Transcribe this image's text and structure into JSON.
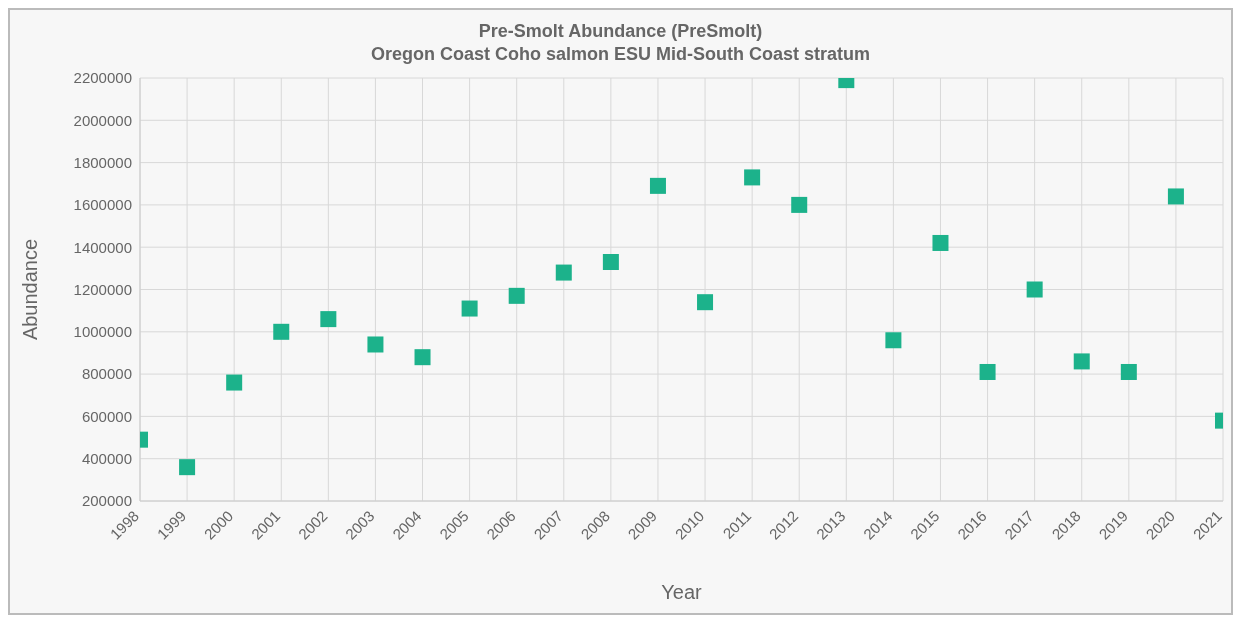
{
  "chart_data": {
    "type": "scatter",
    "title": "Pre-Smolt Abundance (PreSmolt)",
    "subtitle": "Oregon Coast Coho salmon ESU Mid-South Coast stratum",
    "xlabel": "Year",
    "ylabel": "Abundance",
    "categories": [
      "1998",
      "1999",
      "2000",
      "2001",
      "2002",
      "2003",
      "2004",
      "2005",
      "2006",
      "2007",
      "2008",
      "2009",
      "2010",
      "2011",
      "2012",
      "2013",
      "2014",
      "2015",
      "2016",
      "2017",
      "2018",
      "2019",
      "2020",
      "2021"
    ],
    "values": [
      490000,
      360000,
      760000,
      1000000,
      1060000,
      940000,
      880000,
      1110000,
      1170000,
      1280000,
      1330000,
      1690000,
      1140000,
      1730000,
      1600000,
      2190000,
      960000,
      1420000,
      810000,
      1200000,
      860000,
      810000,
      1640000,
      580000
    ],
    "color": "#1cb28b",
    "marker": "square",
    "grid": true,
    "legend": false,
    "ylim": [
      200000,
      2200000
    ],
    "yticks": [
      200000,
      400000,
      600000,
      800000,
      1000000,
      1200000,
      1400000,
      1600000,
      1800000,
      2000000,
      2200000
    ]
  }
}
